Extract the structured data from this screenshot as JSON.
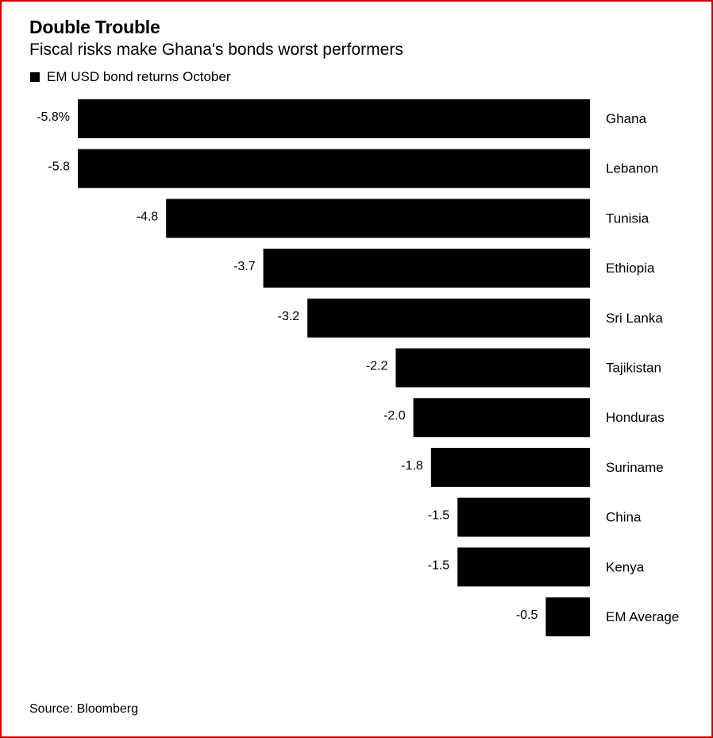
{
  "title": "Double Trouble",
  "subtitle": "Fiscal risks make Ghana's bonds worst performers",
  "source": "Source: Bloomberg",
  "colors": {
    "bar": "#000000",
    "frame": "#cc0000",
    "text": "#000000"
  },
  "chart_data": {
    "type": "bar",
    "orientation": "horizontal",
    "categories": [
      "Ghana",
      "Lebanon",
      "Tunisia",
      "Ethiopia",
      "Sri Lanka",
      "Tajikistan",
      "Honduras",
      "Suriname",
      "China",
      "Kenya",
      "EM Average"
    ],
    "series": [
      {
        "name": "EM USD bond returns October",
        "values": [
          -5.8,
          -5.8,
          -4.8,
          -3.7,
          -3.2,
          -2.2,
          -2.0,
          -1.8,
          -1.5,
          -1.5,
          -0.5
        ]
      }
    ],
    "value_labels": [
      "-5.8%",
      "-5.8",
      "-4.8",
      "-3.7",
      "-3.2",
      "-2.2",
      "-2.0",
      "-1.8",
      "-1.5",
      "-1.5",
      "-0.5"
    ],
    "xlim": [
      -5.8,
      0
    ],
    "legend": "top-left",
    "grid": false
  }
}
